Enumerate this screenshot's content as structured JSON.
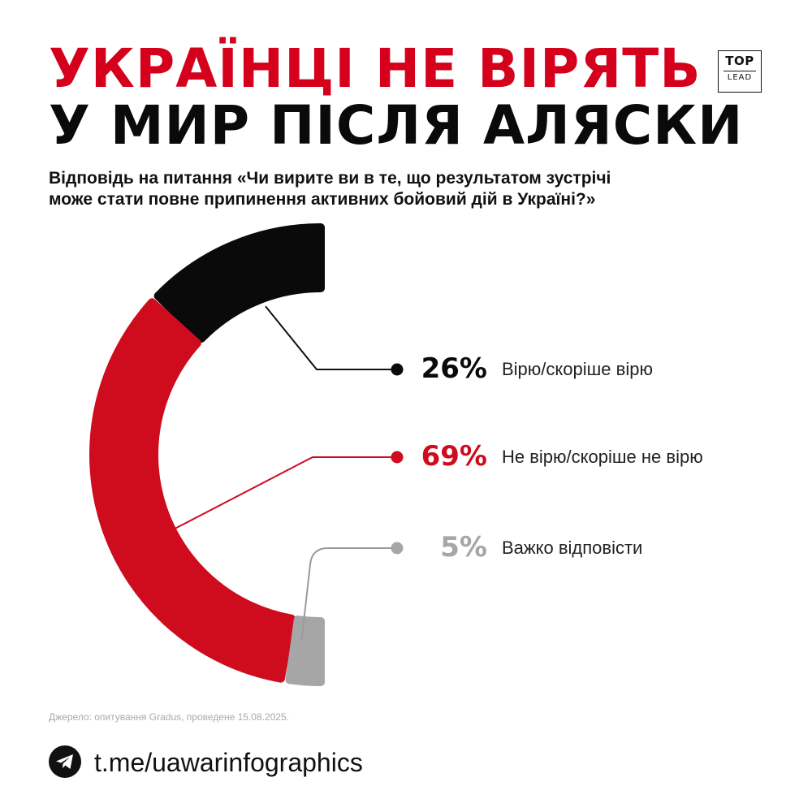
{
  "header": {
    "title_line1": "УКРАЇНЦІ НЕ ВІРЯТЬ",
    "title_line2": "У МИР ПІСЛЯ АЛЯСКИ",
    "logo_top": "TOP",
    "logo_bottom": "LEAD"
  },
  "question": {
    "line1": "Відповідь на питання «Чи вирите ви в те, що результатом зустрічі",
    "line2": "може стати повне припинення активних бойовий дій в Україні?»"
  },
  "chart_data": {
    "type": "pie",
    "variant": "semi-donut",
    "slices": [
      {
        "pct_label": "26%",
        "value": 26,
        "label": "Вірю/скоріше вірю",
        "color": "#0a0a0a"
      },
      {
        "pct_label": "69%",
        "value": 69,
        "label": "Не вірю/скоріше не вірю",
        "color": "#cf0b1e"
      },
      {
        "pct_label": "5%",
        "value": 5,
        "label": "Важко відповісти",
        "color": "#a6a6a6"
      }
    ]
  },
  "footer": {
    "source": "Джерело: опитування Gradus, проведене 15.08.2025.",
    "telegram_icon": "telegram-icon",
    "link": "t.me/uawarinfographics"
  }
}
